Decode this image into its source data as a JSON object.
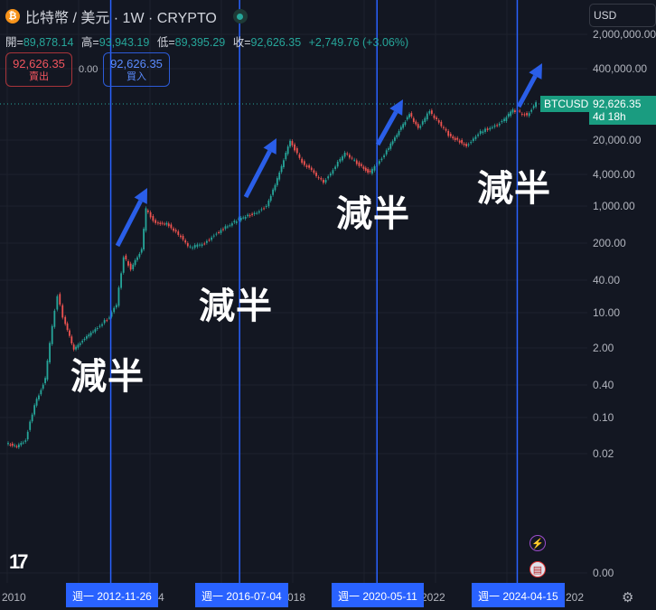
{
  "header": {
    "symbol_title": "比特幣 / 美元 · 1W · CRYPTO",
    "coin_icon": "bitcoin-icon",
    "market_status": "open"
  },
  "ohlc": {
    "open_label": "開=",
    "open": "89,878.14",
    "high_label": "高=",
    "high": "93,943.19",
    "low_label": "低=",
    "low": "89,395.29",
    "close_label": "收=",
    "close": "92,626.35",
    "change": "+2,749.76 (+3.06%)"
  },
  "trade": {
    "sell_price": "92,626.35",
    "sell_label": "賣出",
    "spread": "0.00",
    "buy_price": "92,626.35",
    "buy_label": "買入"
  },
  "currency": "USD",
  "price_axis": [
    "2,000,000.00",
    "400,000.00",
    "20,000.00",
    "4,000.00",
    "1,000.00",
    "200.00",
    "40.00",
    "10.00",
    "2.00",
    "0.40",
    "0.10",
    "0.02",
    "0.00"
  ],
  "last_price": {
    "symbol": "BTCUSD",
    "price": "92,626.35",
    "countdown": "4d 18h"
  },
  "time_axis": [
    "2010",
    "4",
    "018",
    "2022",
    "202"
  ],
  "halvings": [
    {
      "date": "週一 2012-11-26",
      "label": "減半"
    },
    {
      "date": "週一 2016-07-04",
      "label": "減半"
    },
    {
      "date": "週一 2020-05-11",
      "label": "減半"
    },
    {
      "date": "週一 2024-04-15",
      "label": "減半"
    }
  ],
  "colors": {
    "up": "#26a69a",
    "down": "#ef5350",
    "halving_line": "#2962ff",
    "arrow": "#2a5ee8"
  }
}
